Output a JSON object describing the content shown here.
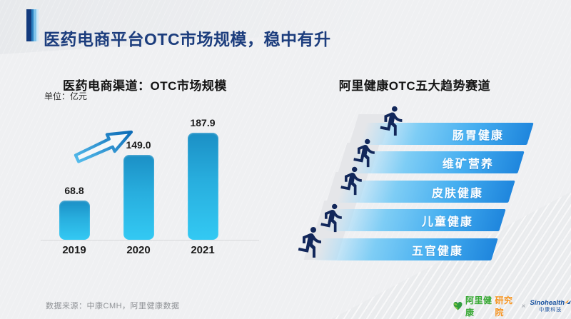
{
  "slide": {
    "title": "医药电商平台OTC市场规模，稳中有升"
  },
  "left_panel": {
    "title": "医药电商渠道：OTC市场规模",
    "unit_label": "单位：亿元"
  },
  "chart_data": {
    "type": "bar",
    "title": "医药电商渠道：OTC市场规模",
    "unit": "亿元",
    "categories": [
      "2019",
      "2020",
      "2021"
    ],
    "values": [
      68.8,
      149.0,
      187.9
    ],
    "value_labels": [
      "68.8",
      "149.0",
      "187.9"
    ],
    "xlabel": "",
    "ylabel": "亿元",
    "ylim": [
      0,
      200
    ],
    "grid": false,
    "annotation": "upward-growth-arrow between 2019 and 2020 bars",
    "bar_gradient": [
      "#1b8fc5",
      "#33c9f3"
    ]
  },
  "right_panel": {
    "title": "阿里健康OTC五大趋势赛道",
    "tracks": [
      "肠胃健康",
      "维矿营养",
      "皮肤健康",
      "儿童健康",
      "五官健康"
    ]
  },
  "footer": {
    "source": "数据来源：中康CMH，阿里健康数据",
    "ali_logo_green": "阿里健康",
    "ali_logo_orange": "研究院",
    "separator": "×",
    "sino_logo_name": "Sinohealth",
    "sino_logo_sub": "中康科技"
  },
  "colors": {
    "title_blue": "#1c3d7d",
    "bar_top": "#1b8fc5",
    "bar_bottom": "#33c9f3",
    "banner_right_blue": "#1f86dd",
    "banner_mid_cyan": "#7ecdf5",
    "runner_navy": "#12275a",
    "ali_green": "#39a935",
    "ali_orange": "#f7941e",
    "sino_blue": "#16509e"
  }
}
